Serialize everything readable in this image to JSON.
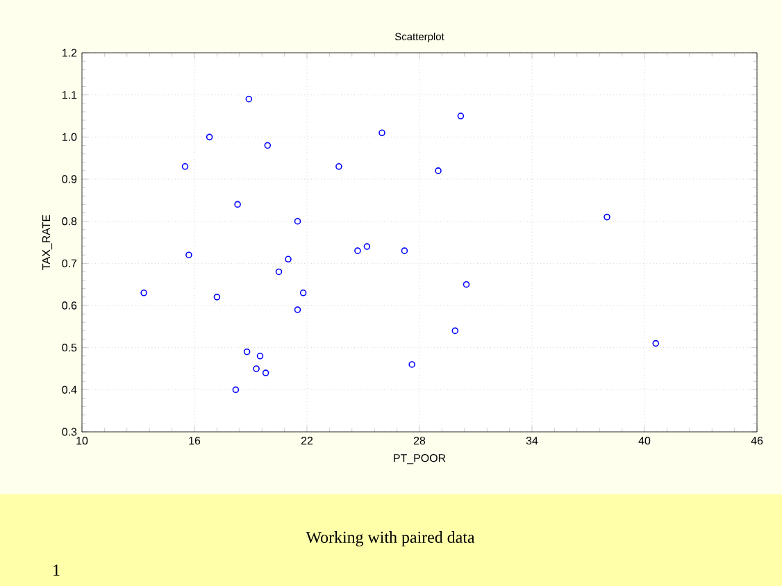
{
  "chart_data": {
    "type": "scatter",
    "title": "Scatterplot",
    "xlabel": "PT_POOR",
    "ylabel": "TAX_RATE",
    "x": [
      13.3,
      15.5,
      15.7,
      16.8,
      17.2,
      18.3,
      18.2,
      18.9,
      18.8,
      19.3,
      19.5,
      19.8,
      19.9,
      20.5,
      21.0,
      21.5,
      21.5,
      21.8,
      23.7,
      24.7,
      25.2,
      26.0,
      27.2,
      27.6,
      29.0,
      29.9,
      30.2,
      30.5,
      38.0,
      40.6
    ],
    "values": [
      0.63,
      0.93,
      0.72,
      1.0,
      0.62,
      0.84,
      0.4,
      1.09,
      0.49,
      0.45,
      0.48,
      0.44,
      0.98,
      0.68,
      0.71,
      0.8,
      0.59,
      0.63,
      0.93,
      0.73,
      0.74,
      1.01,
      0.73,
      0.46,
      0.92,
      0.54,
      1.05,
      0.65,
      0.81,
      0.51
    ],
    "color": "#0000ff",
    "marker": "circle",
    "grid": true,
    "xlim": [
      10,
      46
    ],
    "xticks": [
      10,
      16,
      22,
      28,
      34,
      40,
      46
    ],
    "ylim": [
      0.3,
      1.2
    ],
    "yticks": [
      0.3,
      0.4,
      0.5,
      0.6,
      0.7,
      0.8,
      0.9,
      {
        "value": 1.0,
        "label": "1.0"
      },
      1.1,
      1.2
    ],
    "annotations": [
      "Working with paired data",
      "1"
    ]
  }
}
